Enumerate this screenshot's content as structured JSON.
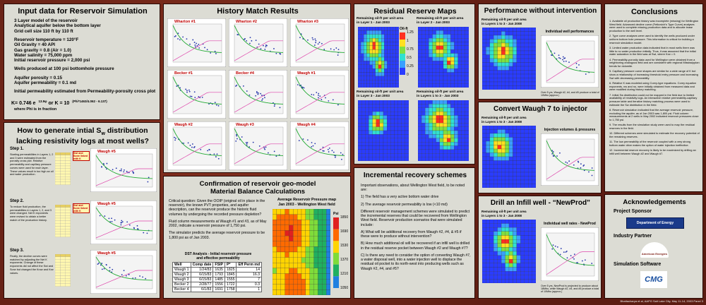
{
  "input_panel": {
    "title": "Input data for Reservoir Simulation",
    "groups": [
      [
        "3 Layer model of the reservoir",
        "Analytical aquifer below the bottom layer",
        "Grid cell size 110 ft by 110 ft"
      ],
      [
        "Reservoir temperature = 120°F",
        "Oil Gravity = 40 API",
        "Gas gravity = 0.8 (Air = 1.0)",
        "Water salinity = 75,000 ppm",
        "Initial reservoir pressure = 2,000 psi"
      ],
      [
        "Wells produced at 100 psi bottomhole pressure"
      ],
      [
        "Aquifer porosity = 0.15",
        "Aquifer permeability = 0.1 md"
      ],
      [
        "Initial permeability estimated from Permeability-porosity cross plot"
      ]
    ],
    "formula": {
      "k1": "K= 0.746 e",
      "exp1": "13.9φ",
      "or": "or",
      "k2": "K = 10",
      "exp2": "(Phi*1463/4.062 - 6.137)",
      "note": "where Phi is in fraction"
    }
  },
  "sw_panel": {
    "title_a": "How to generate intial S",
    "title_sub": "w",
    "title_b": " distribution lacking resistivity logs at most wells?",
    "steps": [
      {
        "label": "Step 1.",
        "text": "Starting permeabilities in Layers 1, 2 and 3 were estimated from the porosity cross plot. Relative permeability and capillary pressure curves were used for each layer. These values result in too high an oil and water production."
      },
      {
        "label": "Step 2.",
        "text": "To reduce fluid production, the permeabilities in Layers 1, 2, and 3 were changed. Net K exponents were revised to obtain a better match of the production history."
      },
      {
        "label": "Step 3.",
        "text": "Finally, the decline curves were matched by adjusting the Net K exponents. Change of these exponents did not affect the Swi and Sorw but changed the Krow and Krw values."
      }
    ],
    "notes": [
      "Swi and Sorw linked with K",
      "Swi and Sorw linked with K"
    ],
    "charts": [
      "Waugh #5",
      "Waugh #5",
      "Waugh #5"
    ]
  },
  "history_panel": {
    "title": "History Match Results",
    "plots": [
      "Wharton #1",
      "Wharton #2",
      "Wharton #3",
      "Becker #1",
      "Becker #4",
      "Waugh #1",
      "Waugh #2",
      "Waugh #3",
      "Waugh #4"
    ]
  },
  "confirm_panel": {
    "title_1": "Confirmation of reservoir geo-model",
    "title_2": "Material Balance Calculations",
    "paragraphs": [
      "Critical question: Given the OOIP (original oil in place in the reservoir), the known PVT properties, and aquifer description, can the reservoir produce the historic fluid volumes by undergoing the recorded pressure depletion?",
      "Fluid column measurements at Waugh #1 and #3, as of May 2002, indicate a reservoir pressure of 1,750 psi.",
      "The simulator predicts the average reservoir pressure to be 1,800 psi as of Jan 2003."
    ],
    "table": {
      "title_1": "DST Analysis - Initial reservoir pressure",
      "title_2": "and effective permeability",
      "header": [
        "Well",
        "Comp date",
        "FSIP",
        "P*",
        "Eff Perm md"
      ],
      "rows": [
        [
          "Waugh 1",
          "1/24/83",
          1635,
          1825,
          14
        ],
        [
          "Waugh 2",
          "6/15/83",
          1793,
          1845,
          16.3
        ],
        [
          "Waugh 3",
          "6/15/83",
          1485,
          1555,
          7
        ],
        [
          "Becker 2",
          "2/28/77",
          1556,
          1722,
          0.3
        ],
        [
          "Becker 4",
          "6/1/83",
          1691,
          1758,
          1
        ]
      ]
    },
    "map": {
      "title_1": "Average Reservoir Pressure map",
      "title_2": "Jan 2003 - Wellington West field",
      "unit": "Psi",
      "scale": [
        1850,
        1690,
        1530,
        1370,
        1210,
        1050
      ]
    }
  },
  "residual_panel": {
    "title": "Residual Reserve Maps",
    "maps": [
      [
        "Remaining oil-ft per unit area",
        "in Layer 1 - Jan 2003"
      ],
      [
        "Remaining oil-ft per unit area",
        "in Layer 2 - Jan 2003"
      ],
      [
        "Remaining oil-ft per unit area",
        "in Layer 3 - Jan 2003"
      ],
      [
        "Remaining oil-ft per unit area",
        "in Layers 1 to 3 - Jan 2003"
      ]
    ],
    "unit": "Oil-ft",
    "scale": [
      1.25,
      1,
      0.75,
      0.5,
      0.25,
      0
    ]
  },
  "incremental_panel": {
    "title": "Incremental recovery schemes",
    "paragraphs": [
      "Important observations, about Wellington West field, to be noted are:",
      "1) The field has a very active bottom water drive",
      "2) The average reservoir permeability is low (<10 md)",
      "Different reservoir management schemes were simulated to predict the incremental reserves that could be recovered from Wellington West field. Reservoir production scenarios that were simulated include:",
      "A) What will be additional recovery from Waugh #2, #4, & #5 if these were to produce without intervention?",
      "B) How much additional oil will be recovered if an infill well is drilled in the residual reserve pocket between Waugh #2 and Waugh #7?",
      "C) Is there any need to consider the option of converting Waugh #7, a water disposal well, into a water injection well to displace the residual oil pocket to its north-west into producing wells such as Waugh #2, #4, and #5?"
    ]
  },
  "performance_panel": {
    "title": "Performance without intervention",
    "caption": [
      "Remaining oil-ft per unit area",
      "in Layers 1 to 3 - Jan 2008"
    ],
    "chart": "Individual well performances",
    "note": "Over 5 yrs, Waugh #2, #4, and #5 produce a total of 10Mbo (approx.)"
  },
  "convert_panel": {
    "title": "Convert Waugh 7 to injector",
    "caption": [
      "Remaining oil-ft per unit area",
      "in Layers 1 to 3 - Jan 2008"
    ],
    "chart": "Injection volumes & pressures"
  },
  "drill_panel": {
    "title": "Drill an Infill well - “NewProd”",
    "caption": [
      "Remaining oil-ft per unit area",
      "in Layers 1 to 3 - Jan 2008"
    ],
    "chart": "Individual well rates - NewProd",
    "note": "Over 5 yrs, NewProd is projected to produce about 18Mbo, while Waugh #2, #4, and #5 produce a total of 10Mbo (approx.)"
  },
  "conclusions_panel": {
    "title": "Conclusions",
    "items": [
      "1. Available oil production history was incomplete (missing) for Wellington West field. Advanced decline curve (Fetkovich's Type Curve) analyses were used to complete missing production data and to allocate lease production to the well level.",
      "2. Type curve analyses were used to identify the wells produced under uniform bottom hole pressure. This information is critical for building a reservoir simulation model.",
      "3. Limited water production data indicated that in most wells there was little to no water production initially. Thus, it was assumed that the initial water saturation in the field was at Swi, where Krw = 0.",
      "4. Permeability-porosity data used for Wellington were obtained from a neighboring analogous field and are consistent with regional Mississippian trends for dolomite.",
      "5. Capillary pressure curve shapes are similar for a wide range of K but show a relationship of increasing threshold entry pressure and increasing Swi with decreasing permeability.",
      "6. Relative K was modeled using Corey-type equations. Corey equation exponents, nw and no, were initially obtained from measured data and were modified during history matching.",
      "7. Initial Sw distribution could not be mapped in the field due to limited availability of resistivity logs. An interactive relative permeability-capillary pressure table and iterative history matching process were used to estimate the Sw distribution in the field.",
      "8. Reservoir simulation indicated that the average reservoir pressure, excluding the aquifer, as of Jan 2003 was 1,800 psi. Fluid column measurements at 2 wells in May 2002 indicated reservoir pressures close to 1,750 psi.",
      "9. The results from the simulation study were used to map the residual reserves in the field.",
      "10. Different schemes were simulated to estimate the recovery potential of the remaining reserves.",
      "11. The low permeability of the reservoir coupled with a very strong bottom water drive makes the option of water injection ineffective.",
      "12. Incremental reserve recovery is likely to be maximized by drilling an infill well between Waugh #2 and Waugh #7."
    ]
  },
  "ack_panel": {
    "title": "Acknowledgements",
    "sponsor": "Project Sponsor",
    "sponsor_name": "Department of Energy",
    "partner": "Industry Partner",
    "partner_name": "American Energies",
    "software": "Simulation Software",
    "software_name": "CMG"
  },
  "footer": "Bhattacharya et al, AAPG Salt Lake City, May 11-14, 2003 Panel 3"
}
